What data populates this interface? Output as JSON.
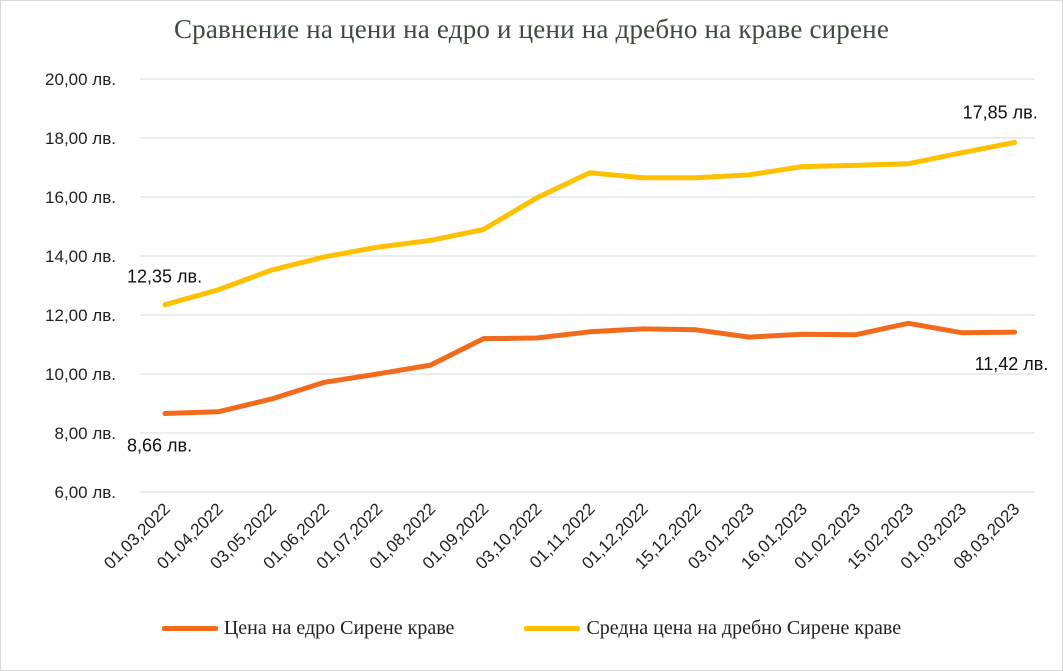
{
  "chart_data": {
    "type": "line",
    "title": "Сравнение на цени на едро и цени на дребно на краве сирене",
    "categories": [
      "01,03,2022",
      "01,04,2022",
      "03,05,2022",
      "01,06,2022",
      "01,07,2022",
      "01,08,2022",
      "01,09,2022",
      "03,10,2022",
      "01,11,2022",
      "01,12,2022",
      "15,12,2022",
      "03,01,2023",
      "16,01,2023",
      "01,02,2023",
      "15,02,2023",
      "01,03,2023",
      "08,03,2023"
    ],
    "ylim": [
      6,
      20
    ],
    "yticks": [
      6,
      8,
      10,
      12,
      14,
      16,
      18,
      20
    ],
    "ytick_labels": [
      "6,00 лв.",
      "8,00 лв.",
      "10,00 лв.",
      "12,00 лв.",
      "14,00 лв.",
      "16,00 лв.",
      "18,00 лв.",
      "20,00 лв."
    ],
    "grid": true,
    "legend_position": "bottom",
    "series": [
      {
        "name": "Цена на едро Сирене краве",
        "color": "#f26b1d",
        "values": [
          8.66,
          8.72,
          9.15,
          9.72,
          10.0,
          10.3,
          11.2,
          11.22,
          11.43,
          11.53,
          11.5,
          11.25,
          11.35,
          11.33,
          11.72,
          11.4,
          11.42
        ],
        "labels": {
          "first": "8,66 лв.",
          "last": "11,42 лв."
        }
      },
      {
        "name": "Средна цена на дребно Сирене краве",
        "color": "#ffc000",
        "values": [
          12.35,
          12.85,
          13.52,
          13.97,
          14.3,
          14.53,
          14.9,
          15.97,
          16.82,
          16.65,
          16.65,
          16.75,
          17.03,
          17.07,
          17.13,
          17.5,
          17.85
        ],
        "labels": {
          "first": "12,35 лв.",
          "last": "17,85 лв."
        }
      }
    ]
  }
}
